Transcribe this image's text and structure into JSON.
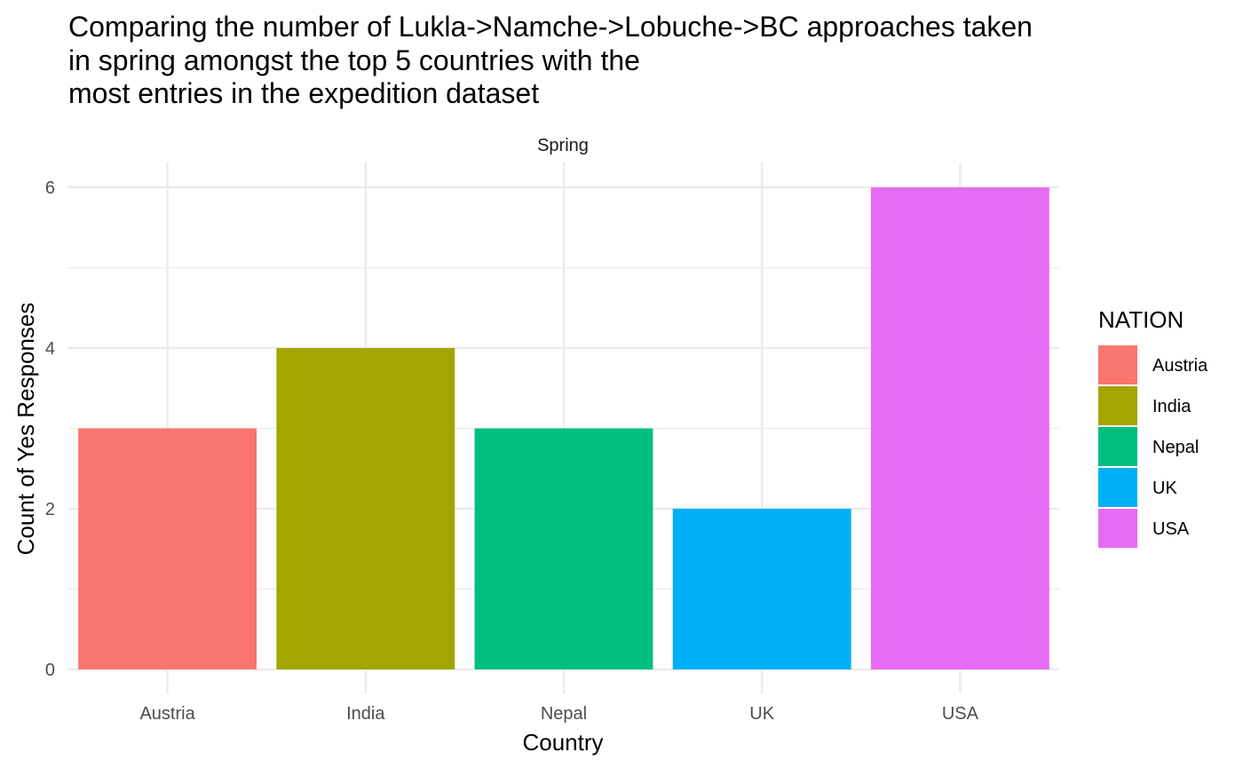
{
  "chart_data": {
    "type": "bar",
    "title_lines": [
      "Comparing the number of Lukla->Namche->Lobuche->BC approaches taken",
      "in spring amongst the top 5 countries with the",
      "most entries in the expedition dataset"
    ],
    "facet_label": "Spring",
    "xlabel": "Country",
    "ylabel": "Count of Yes Responses",
    "categories": [
      "Austria",
      "India",
      "Nepal",
      "UK",
      "USA"
    ],
    "values": [
      3,
      4,
      3,
      2,
      6
    ],
    "colors": [
      "#F8766D",
      "#A3A500",
      "#00BF7D",
      "#00B0F6",
      "#E76BF3"
    ],
    "ylim": [
      0,
      6
    ],
    "y_major_ticks": [
      0,
      2,
      4,
      6
    ],
    "y_minor_ticks": [
      1,
      3,
      5
    ],
    "grid": true,
    "legend": {
      "title": "NATION",
      "placement": "right",
      "entries": [
        "Austria",
        "India",
        "Nepal",
        "UK",
        "USA"
      ]
    }
  }
}
